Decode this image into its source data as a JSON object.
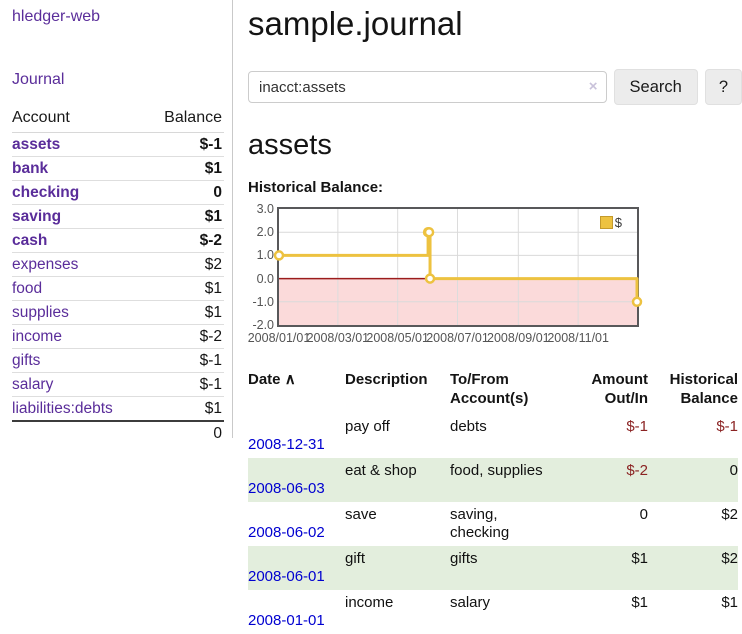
{
  "colors": {
    "accent_purple": "#5a2d9a",
    "link_blue": "#0000d0",
    "negative_strong": "#862025",
    "negative_light": "#b5797a",
    "row_stripe_green": "#e3eedd",
    "chart_gold": "#edc240",
    "chart_negative_fill": "#fbdada",
    "chart_zero_line": "#9b1c1c"
  },
  "sidebar": {
    "app_title": "hledger-web",
    "journal_link": "Journal",
    "accounts_table": {
      "headers": {
        "account": "Account",
        "balance": "Balance"
      },
      "rows": [
        {
          "name": "assets",
          "balance": "$-1",
          "indent": 1,
          "bold": true,
          "neg": "strong"
        },
        {
          "name": "bank",
          "balance": "$1",
          "indent": 2,
          "bold": true
        },
        {
          "name": "checking",
          "balance": "0",
          "indent": 3,
          "bold": true
        },
        {
          "name": "saving",
          "balance": "$1",
          "indent": 3,
          "bold": true
        },
        {
          "name": "cash",
          "balance": "$-2",
          "indent": 2,
          "bold": true,
          "neg": "strong"
        },
        {
          "name": "expenses",
          "balance": "$2",
          "indent": 1
        },
        {
          "name": "food",
          "balance": "$1",
          "indent": 2
        },
        {
          "name": "supplies",
          "balance": "$1",
          "indent": 2
        },
        {
          "name": "income",
          "balance": "$-2",
          "indent": 1,
          "neg": "light"
        },
        {
          "name": "gifts",
          "balance": "$-1",
          "indent": 2,
          "neg": "light"
        },
        {
          "name": "salary",
          "balance": "$-1",
          "indent": 2,
          "neg": "light",
          "link": "blue"
        },
        {
          "name": "liabilities:debts",
          "balance": "$1",
          "indent": 1
        }
      ],
      "total": "0"
    }
  },
  "main": {
    "title": "sample.journal",
    "search": {
      "value": "inacct:assets",
      "clear_icon": "×",
      "search_button": "Search",
      "help_button": "?"
    },
    "account_heading": "assets",
    "chart_label": "Historical Balance:",
    "register_table": {
      "headers": {
        "date": "Date",
        "sort_caret": "∧",
        "description": "Description",
        "accounts": "To/From\nAccount(s)",
        "amount": "Amount\nOut/In",
        "balance": "Historical\nBalance"
      },
      "rows": [
        {
          "date": "2008-12-31",
          "description": "pay off",
          "accounts": "debts",
          "amount": "$-1",
          "amount_neg": true,
          "balance": "$-1",
          "balance_neg": true
        },
        {
          "date": "2008-06-03",
          "description": "eat & shop",
          "accounts": "food, supplies",
          "amount": "$-2",
          "amount_neg": true,
          "balance": "0"
        },
        {
          "date": "2008-06-02",
          "description": "save",
          "accounts": "saving,\nchecking",
          "amount": "0",
          "balance": "$2"
        },
        {
          "date": "2008-06-01",
          "description": "gift",
          "accounts": "gifts",
          "amount": "$1",
          "balance": "$2"
        },
        {
          "date": "2008-01-01",
          "description": "income",
          "accounts": "salary",
          "amount": "$1",
          "balance": "$1"
        }
      ]
    }
  },
  "chart_data": {
    "type": "line",
    "title": "Historical Balance",
    "series": [
      {
        "name": "$",
        "step": true,
        "color": "#edc240",
        "points": [
          [
            "2008-01-01",
            1
          ],
          [
            "2008-06-01",
            2
          ],
          [
            "2008-06-02",
            2
          ],
          [
            "2008-06-03",
            0
          ],
          [
            "2008-12-31",
            -1
          ]
        ]
      }
    ],
    "xlim": [
      "2008-01-01",
      "2008-12-31"
    ],
    "ylim": [
      -2,
      3
    ],
    "x_ticks": [
      "2008-01-01",
      "2008-03-01",
      "2008-05-01",
      "2008-07-01",
      "2008-09-01",
      "2008-11-01"
    ],
    "x_tick_labels": [
      "2008/01/01",
      "2008/03/01",
      "2008/05/01",
      "2008/07/01",
      "2008/09/01",
      "2008/11/01"
    ],
    "y_ticks": [
      3,
      2,
      1,
      0,
      -1,
      -2
    ],
    "y_tick_labels": [
      "3.0",
      "2.0",
      "1.0",
      "0.0",
      "-1.0",
      "-2.0"
    ],
    "legend": {
      "label": "$",
      "position": "top-right"
    },
    "grid": true,
    "negative_region_fill": "#fbdada",
    "zero_line_color": "#9b1c1c"
  }
}
